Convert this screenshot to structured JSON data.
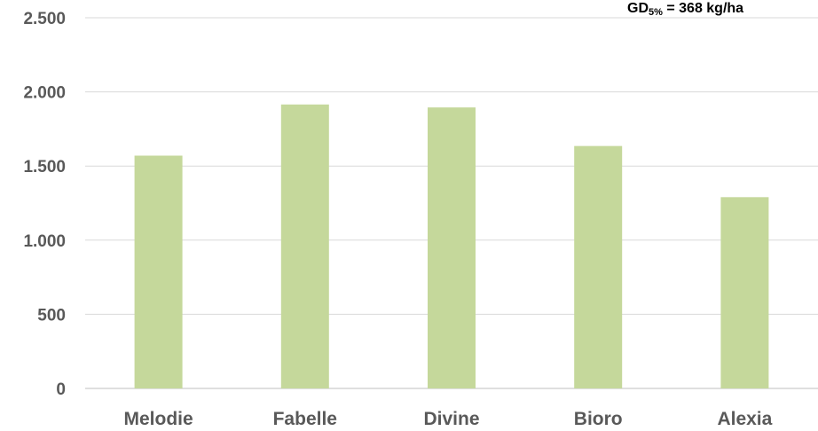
{
  "chart_data": {
    "type": "bar",
    "categories": [
      "Melodie",
      "Fabelle",
      "Divine",
      "Bioro",
      "Alexia"
    ],
    "values": [
      1570,
      1915,
      1895,
      1635,
      1290
    ],
    "ylim": [
      0,
      2500
    ],
    "yticks": [
      0,
      500,
      1000,
      1500,
      2000,
      2500
    ],
    "ytick_labels": [
      "0",
      "500",
      "1.000",
      "1.500",
      "2.000",
      "2.500"
    ],
    "grid": true,
    "bar_color": "#c5d89b",
    "annotation": {
      "prefix": "GD",
      "subscript": "5%",
      "suffix": " = 368 kg/ha"
    }
  }
}
